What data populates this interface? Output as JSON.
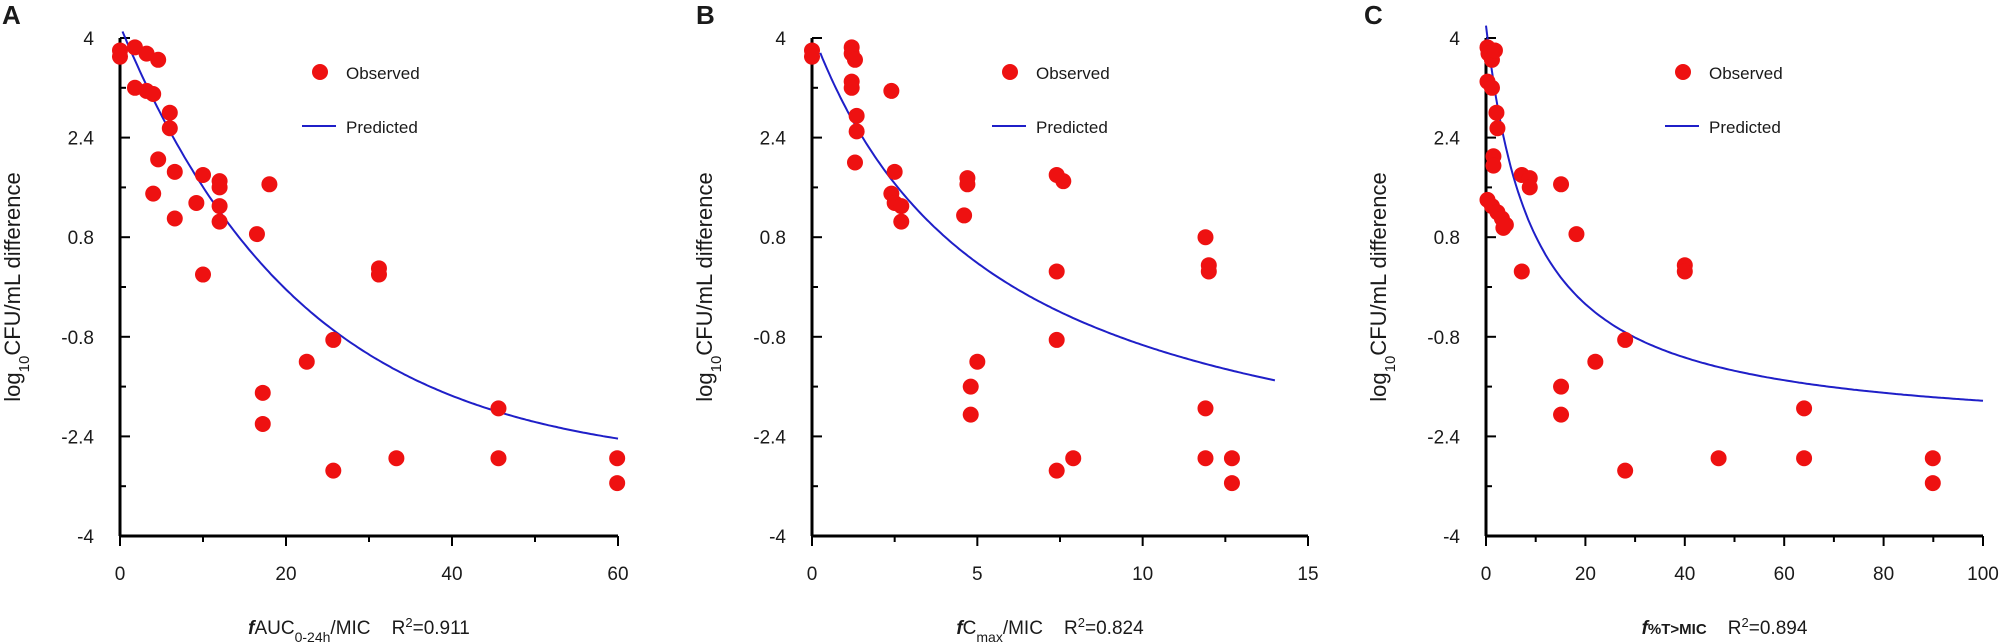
{
  "colors": {
    "observed": "#ee1111",
    "predicted": "#1f1fc8",
    "axis": "#000000"
  },
  "chart_data": [
    {
      "type": "scatter",
      "panel": "A",
      "legend": {
        "observed": "Observed",
        "predicted": "Predicted"
      },
      "ylabel": {
        "pre": "log",
        "sub": "10",
        "post": "CFU/mL difference"
      },
      "xlabel": {
        "italic": "f",
        "main": "AUC",
        "sub": "0-24h",
        "tail": "/MIC",
        "r2_pre": "R",
        "r2_sup": "2",
        "r2_val": "=0.911"
      },
      "xlim": [
        0,
        60
      ],
      "ylim": [
        -4,
        4
      ],
      "xticks": [
        0,
        20,
        40,
        60
      ],
      "xticklabels": [
        "0",
        "20",
        "40",
        "60"
      ],
      "yticks": [
        4,
        2.4,
        0.8,
        -0.8,
        -2.4,
        -4
      ],
      "yticklabels": [
        "4",
        "2.4",
        "0.8",
        "-0.8",
        "-2.4",
        "-4"
      ],
      "observed": [
        [
          0,
          3.8
        ],
        [
          0,
          3.7
        ],
        [
          1.8,
          3.85
        ],
        [
          3.2,
          3.75
        ],
        [
          4.6,
          3.65
        ],
        [
          1.8,
          3.2
        ],
        [
          3.2,
          3.15
        ],
        [
          4,
          3.1
        ],
        [
          6,
          2.8
        ],
        [
          6,
          2.55
        ],
        [
          4.6,
          2.05
        ],
        [
          6.6,
          1.85
        ],
        [
          4,
          1.5
        ],
        [
          9.2,
          1.35
        ],
        [
          6.6,
          1.1
        ],
        [
          10,
          1.8
        ],
        [
          12,
          1.7
        ],
        [
          12,
          1.6
        ],
        [
          12,
          1.3
        ],
        [
          18,
          1.65
        ],
        [
          12,
          1.05
        ],
        [
          16.5,
          0.85
        ],
        [
          10,
          0.2
        ],
        [
          31.2,
          0.3
        ],
        [
          31.2,
          0.2
        ],
        [
          25.7,
          -0.85
        ],
        [
          22.5,
          -1.2
        ],
        [
          17.2,
          -1.7
        ],
        [
          17.2,
          -2.2
        ],
        [
          25.7,
          -2.95
        ],
        [
          33.3,
          -2.75
        ],
        [
          45.6,
          -1.95
        ],
        [
          45.6,
          -2.75
        ],
        [
          59.9,
          -2.75
        ],
        [
          59.9,
          -3.15
        ]
      ],
      "predicted": {
        "model": "exponential decay",
        "emax": 7.1,
        "ec50": 22,
        "e0": 4.2,
        "x_range": [
          0.3,
          60
        ]
      }
    },
    {
      "type": "scatter",
      "panel": "B",
      "legend": {
        "observed": "Observed",
        "predicted": "Predicted"
      },
      "ylabel": {
        "pre": "log",
        "sub": "10",
        "post": "CFU/mL difference"
      },
      "xlabel": {
        "italic": "f",
        "main": "C",
        "sub": "max",
        "tail": "/MIC",
        "r2_pre": "R",
        "r2_sup": "2",
        "r2_val": "=0.824"
      },
      "xlim": [
        0,
        15
      ],
      "ylim": [
        -4,
        4
      ],
      "xticks": [
        0,
        5,
        10,
        15
      ],
      "xticklabels": [
        "0",
        "5",
        "10",
        "15"
      ],
      "yticks": [
        4,
        2.4,
        0.8,
        -0.8,
        -2.4,
        -4
      ],
      "yticklabels": [
        "4",
        "2.4",
        "0.8",
        "-0.8",
        "-2.4",
        "-4"
      ],
      "observed": [
        [
          0,
          3.8
        ],
        [
          0,
          3.7
        ],
        [
          1.2,
          3.85
        ],
        [
          1.2,
          3.75
        ],
        [
          1.3,
          3.65
        ],
        [
          1.2,
          3.3
        ],
        [
          1.2,
          3.2
        ],
        [
          2.4,
          3.15
        ],
        [
          1.35,
          2.75
        ],
        [
          1.35,
          2.5
        ],
        [
          1.3,
          2.0
        ],
        [
          2.5,
          1.85
        ],
        [
          2.4,
          1.5
        ],
        [
          2.5,
          1.35
        ],
        [
          2.7,
          1.3
        ],
        [
          2.7,
          1.05
        ],
        [
          4.7,
          1.75
        ],
        [
          4.7,
          1.65
        ],
        [
          4.6,
          1.15
        ],
        [
          7.4,
          1.8
        ],
        [
          7.6,
          1.7
        ],
        [
          7.4,
          0.25
        ],
        [
          11.9,
          0.8
        ],
        [
          12,
          0.35
        ],
        [
          12,
          0.25
        ],
        [
          7.4,
          -0.85
        ],
        [
          5,
          -1.2
        ],
        [
          4.8,
          -1.6
        ],
        [
          4.8,
          -2.05
        ],
        [
          7.4,
          -2.95
        ],
        [
          7.9,
          -2.75
        ],
        [
          11.9,
          -1.95
        ],
        [
          11.9,
          -2.75
        ],
        [
          12.7,
          -2.75
        ],
        [
          12.7,
          -3.15
        ]
      ],
      "predicted": {
        "model": "hyperbolic",
        "emax": 7.8,
        "ec50": 5.5,
        "e0": 4.1,
        "x_range": [
          0.25,
          14
        ]
      }
    },
    {
      "type": "scatter",
      "panel": "C",
      "legend": {
        "observed": "Observed",
        "predicted": "Predicted"
      },
      "ylabel": {
        "pre": "log",
        "sub": "10",
        "post": "CFU/mL difference"
      },
      "xlabel": {
        "italic": "f",
        "main": "%T>MIC",
        "sub": "",
        "tail": "",
        "r2_pre": "R",
        "r2_sup": "2",
        "r2_val": "=0.894"
      },
      "xlim": [
        0,
        100
      ],
      "ylim": [
        -4,
        4
      ],
      "xticks": [
        0,
        20,
        40,
        60,
        80,
        100
      ],
      "xticklabels": [
        "0",
        "20",
        "40",
        "60",
        "80",
        "100"
      ],
      "yticks": [
        4,
        2.4,
        0.8,
        -0.8,
        -2.4,
        -4
      ],
      "yticklabels": [
        "4",
        "2.4",
        "0.8",
        "-0.8",
        "-2.4",
        "-4"
      ],
      "observed": [
        [
          0.3,
          3.85
        ],
        [
          0.5,
          3.75
        ],
        [
          1.2,
          3.65
        ],
        [
          1.8,
          3.8
        ],
        [
          0.3,
          3.3
        ],
        [
          1.2,
          3.2
        ],
        [
          2.1,
          2.8
        ],
        [
          2.3,
          2.55
        ],
        [
          1.5,
          2.1
        ],
        [
          1.5,
          1.95
        ],
        [
          0.3,
          1.4
        ],
        [
          1.2,
          1.3
        ],
        [
          2.3,
          1.2
        ],
        [
          3.2,
          1.1
        ],
        [
          3.5,
          0.95
        ],
        [
          4,
          1.0
        ],
        [
          7.2,
          1.8
        ],
        [
          8.8,
          1.75
        ],
        [
          8.8,
          1.6
        ],
        [
          15.1,
          1.65
        ],
        [
          18.2,
          0.85
        ],
        [
          7.2,
          0.25
        ],
        [
          40,
          0.35
        ],
        [
          40,
          0.25
        ],
        [
          28,
          -0.85
        ],
        [
          22,
          -1.2
        ],
        [
          15.1,
          -1.6
        ],
        [
          15.1,
          -2.05
        ],
        [
          28,
          -2.95
        ],
        [
          46.8,
          -2.75
        ],
        [
          64,
          -1.95
        ],
        [
          64,
          -2.75
        ],
        [
          89.9,
          -2.75
        ],
        [
          89.9,
          -3.15
        ]
      ],
      "predicted": {
        "model": "hyperbolic",
        "emax": 6.6,
        "ec50": 9.5,
        "e0": 4.2,
        "x_range": [
          0,
          100
        ]
      }
    }
  ]
}
